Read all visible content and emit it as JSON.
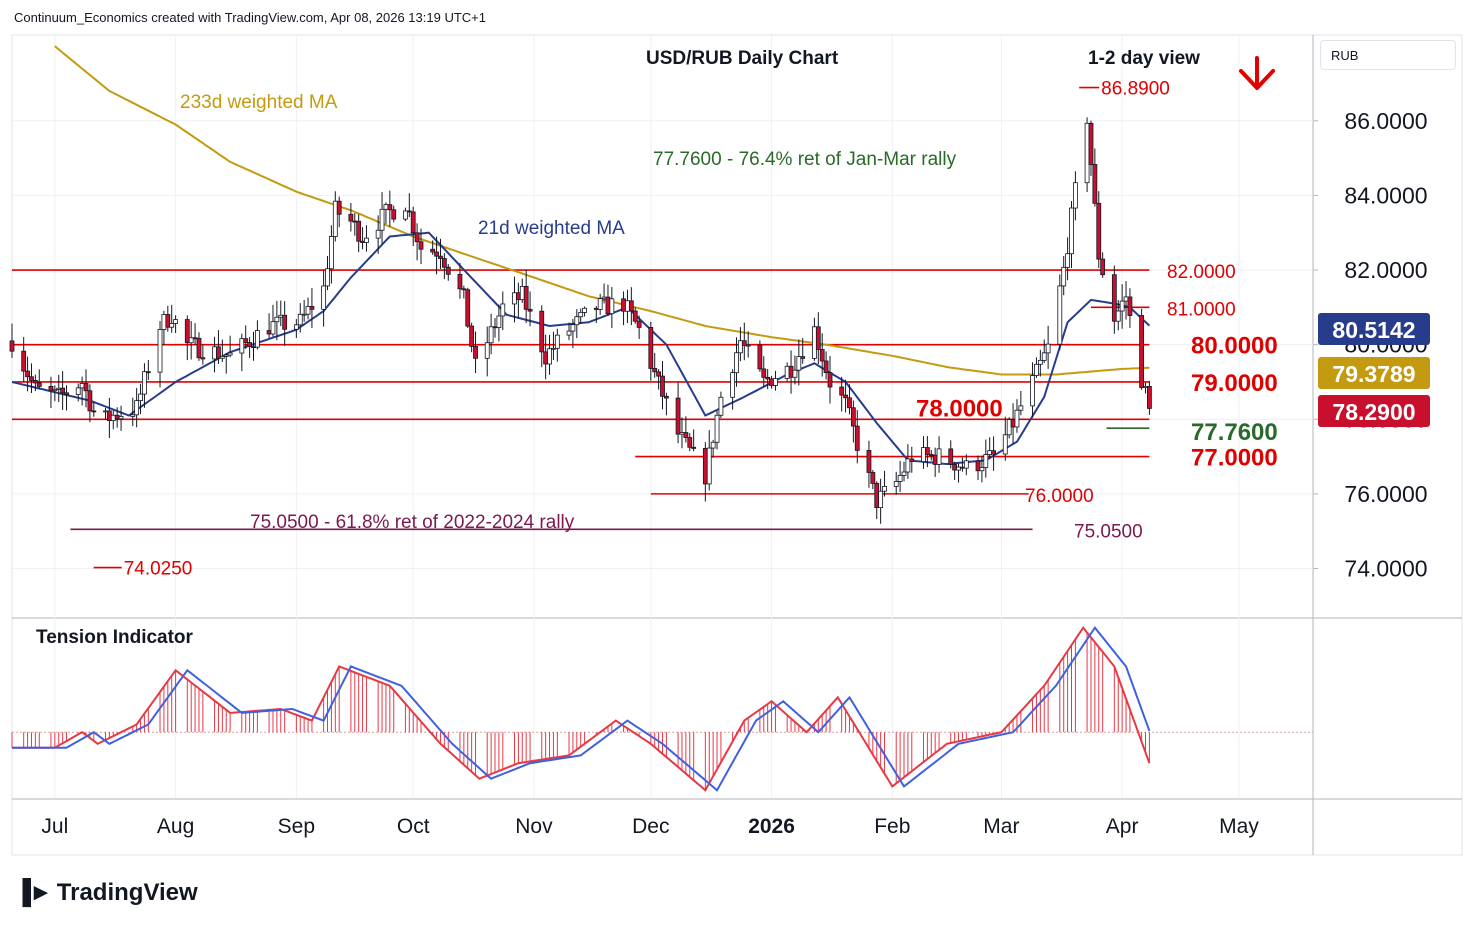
{
  "header": {
    "attribution": "Continuum_Economics created with TradingView.com, Apr 08, 2026 13:19 UTC+1",
    "currency": "RUB",
    "brand": "TradingView"
  },
  "colors": {
    "bull": "#ffffff",
    "bear": "#c8102e",
    "wick": "#131722",
    "level": "#e00000",
    "ma21": "#283c8c",
    "ma233": "#c49a10",
    "retrace_green": "#2a6a2a",
    "retrace_purple": "#7b1a4e",
    "tension_red": "#e63946",
    "tension_blue": "#4060e0",
    "badge_ma21": "#283c8c",
    "badge_ma233": "#c49a10",
    "badge_price": "#c8102e"
  },
  "chart_data": {
    "type": "candlestick",
    "title": "USD/RUB Daily Chart",
    "view_label": "1-2 day view",
    "view_icon": "arrow-down-icon",
    "y_axis": {
      "ticks": [
        "86.0000",
        "84.0000",
        "82.0000",
        "80.0000",
        "78.0000",
        "76.0000",
        "74.0000"
      ],
      "ylim": [
        72.7,
        88.3
      ]
    },
    "x_axis": {
      "labels": [
        "Jul",
        "Aug",
        "Sep",
        "Oct",
        "Nov",
        "Dec",
        "2026",
        "Feb",
        "Mar",
        "Apr",
        "May"
      ],
      "start": "2025-06-20",
      "end": "2026-05-20",
      "label_dates": [
        "2025-07-01",
        "2025-08-01",
        "2025-09-01",
        "2025-10-01",
        "2025-11-01",
        "2025-12-01",
        "2026-01-01",
        "2026-02-01",
        "2026-03-01",
        "2026-04-01",
        "2026-05-01"
      ]
    },
    "candle_anchors": [
      [
        "2025-06-20",
        80.1
      ],
      [
        "2025-06-26",
        78.8
      ],
      [
        "2025-07-02",
        78.6
      ],
      [
        "2025-07-08",
        79.0
      ],
      [
        "2025-07-11",
        78.2
      ],
      [
        "2025-07-14",
        78.0
      ],
      [
        "2025-07-16",
        78.1
      ],
      [
        "2025-07-22",
        78.3
      ],
      [
        "2025-07-28",
        80.5
      ],
      [
        "2025-07-31",
        80.8
      ],
      [
        "2025-08-04",
        80.0
      ],
      [
        "2025-08-15",
        79.7
      ],
      [
        "2025-08-25",
        80.5
      ],
      [
        "2025-09-02",
        80.6
      ],
      [
        "2025-09-08",
        81.5
      ],
      [
        "2025-09-11",
        83.6
      ],
      [
        "2025-09-15",
        83.3
      ],
      [
        "2025-09-18",
        82.9
      ],
      [
        "2025-09-24",
        83.5
      ],
      [
        "2025-09-29",
        83.8
      ],
      [
        "2025-10-03",
        82.6
      ],
      [
        "2025-10-08",
        82.5
      ],
      [
        "2025-10-14",
        81.2
      ],
      [
        "2025-10-17",
        79.4
      ],
      [
        "2025-10-24",
        81.0
      ],
      [
        "2025-10-29",
        81.3
      ],
      [
        "2025-11-04",
        79.7
      ],
      [
        "2025-11-10",
        80.4
      ],
      [
        "2025-11-17",
        81.0
      ],
      [
        "2025-11-24",
        81.1
      ],
      [
        "2025-11-28",
        80.4
      ],
      [
        "2025-12-02",
        79.2
      ],
      [
        "2025-12-08",
        77.6
      ],
      [
        "2025-12-15",
        76.5
      ],
      [
        "2025-12-19",
        78.6
      ],
      [
        "2025-12-24",
        80.1
      ],
      [
        "2025-12-30",
        79.0
      ],
      [
        "2026-01-06",
        79.4
      ],
      [
        "2026-01-12",
        80.4
      ],
      [
        "2026-01-16",
        79.0
      ],
      [
        "2026-01-20",
        78.4
      ],
      [
        "2026-01-24",
        77.0
      ],
      [
        "2026-01-28",
        75.8
      ],
      [
        "2026-02-02",
        76.3
      ],
      [
        "2026-02-06",
        77.0
      ],
      [
        "2026-02-13",
        77.0
      ],
      [
        "2026-02-20",
        76.7
      ],
      [
        "2026-02-27",
        77.0
      ],
      [
        "2026-03-04",
        77.9
      ],
      [
        "2026-03-09",
        79.0
      ],
      [
        "2026-03-13",
        79.9
      ],
      [
        "2026-03-17",
        82.0
      ],
      [
        "2026-03-20",
        84.1
      ],
      [
        "2026-03-23",
        86.1
      ],
      [
        "2026-03-26",
        82.4
      ],
      [
        "2026-03-30",
        80.7
      ],
      [
        "2026-04-02",
        81.3
      ],
      [
        "2026-04-05",
        79.5
      ],
      [
        "2026-04-08",
        78.29
      ]
    ],
    "ma21_anchors": [
      [
        "2025-06-20",
        79.0
      ],
      [
        "2025-07-10",
        78.5
      ],
      [
        "2025-07-20",
        78.1
      ],
      [
        "2025-08-01",
        79.0
      ],
      [
        "2025-08-15",
        79.8
      ],
      [
        "2025-09-01",
        80.4
      ],
      [
        "2025-09-08",
        80.9
      ],
      [
        "2025-09-15",
        81.8
      ],
      [
        "2025-09-25",
        82.9
      ],
      [
        "2025-10-05",
        83.0
      ],
      [
        "2025-10-15",
        81.9
      ],
      [
        "2025-10-25",
        80.8
      ],
      [
        "2025-11-05",
        80.5
      ],
      [
        "2025-11-15",
        80.6
      ],
      [
        "2025-11-25",
        81.0
      ],
      [
        "2025-12-05",
        80.0
      ],
      [
        "2025-12-15",
        78.1
      ],
      [
        "2025-12-25",
        78.6
      ],
      [
        "2026-01-05",
        79.2
      ],
      [
        "2026-01-12",
        79.5
      ],
      [
        "2026-01-20",
        79.0
      ],
      [
        "2026-01-28",
        77.9
      ],
      [
        "2026-02-05",
        76.9
      ],
      [
        "2026-02-15",
        76.8
      ],
      [
        "2026-02-25",
        76.9
      ],
      [
        "2026-03-05",
        77.4
      ],
      [
        "2026-03-12",
        78.6
      ],
      [
        "2026-03-18",
        80.6
      ],
      [
        "2026-03-24",
        81.2
      ],
      [
        "2026-03-30",
        81.1
      ],
      [
        "2026-04-03",
        81.0
      ],
      [
        "2026-04-08",
        80.51
      ]
    ],
    "ma233_anchors": [
      [
        "2025-07-01",
        88.0
      ],
      [
        "2025-07-15",
        86.8
      ],
      [
        "2025-08-01",
        85.9
      ],
      [
        "2025-08-15",
        84.9
      ],
      [
        "2025-09-01",
        84.1
      ],
      [
        "2025-09-15",
        83.6
      ],
      [
        "2025-10-01",
        82.9
      ],
      [
        "2025-10-15",
        82.4
      ],
      [
        "2025-11-01",
        81.8
      ],
      [
        "2025-11-15",
        81.3
      ],
      [
        "2025-12-01",
        80.9
      ],
      [
        "2025-12-15",
        80.5
      ],
      [
        "2026-01-01",
        80.2
      ],
      [
        "2026-01-15",
        80.0
      ],
      [
        "2026-02-01",
        79.7
      ],
      [
        "2026-02-15",
        79.4
      ],
      [
        "2026-03-01",
        79.2
      ],
      [
        "2026-03-15",
        79.2
      ],
      [
        "2026-04-01",
        79.35
      ],
      [
        "2026-04-08",
        79.38
      ]
    ],
    "tension_anchors": [
      [
        "2025-06-20",
        -0.4
      ],
      [
        "2025-07-01",
        -0.4
      ],
      [
        "2025-07-08",
        0.0
      ],
      [
        "2025-07-12",
        -0.3
      ],
      [
        "2025-07-22",
        0.2
      ],
      [
        "2025-08-01",
        1.6
      ],
      [
        "2025-08-15",
        0.5
      ],
      [
        "2025-08-28",
        0.6
      ],
      [
        "2025-09-05",
        0.3
      ],
      [
        "2025-09-12",
        1.7
      ],
      [
        "2025-09-25",
        1.2
      ],
      [
        "2025-10-08",
        -0.3
      ],
      [
        "2025-10-18",
        -1.2
      ],
      [
        "2025-10-28",
        -0.8
      ],
      [
        "2025-11-10",
        -0.6
      ],
      [
        "2025-11-22",
        0.3
      ],
      [
        "2025-12-01",
        -0.3
      ],
      [
        "2025-12-15",
        -1.5
      ],
      [
        "2025-12-25",
        0.3
      ],
      [
        "2026-01-01",
        0.8
      ],
      [
        "2026-01-10",
        0.0
      ],
      [
        "2026-01-18",
        0.9
      ],
      [
        "2026-02-01",
        -1.4
      ],
      [
        "2026-02-15",
        -0.3
      ],
      [
        "2026-03-01",
        0.0
      ],
      [
        "2026-03-12",
        1.2
      ],
      [
        "2026-03-22",
        2.7
      ],
      [
        "2026-03-30",
        1.7
      ],
      [
        "2026-04-08",
        -0.8
      ]
    ],
    "tension_ylim": [
      -1.7,
      2.9
    ],
    "levels": [
      {
        "value": "82.0000",
        "y": 82.0,
        "start": "2025-06-20",
        "end": "2026-04-08",
        "color": "#e00000",
        "size": "md"
      },
      {
        "value": "81.0000",
        "y": 81.0,
        "start": "2026-03-24",
        "end": "2026-04-08",
        "color": "#e00000",
        "size": "md"
      },
      {
        "value": "80.0000",
        "y": 80.0,
        "start": "2025-06-20",
        "end": "2026-04-08",
        "color": "#e00000",
        "size": "lg"
      },
      {
        "value": "79.0000",
        "y": 79.0,
        "start": "2025-06-20",
        "end": "2026-04-08",
        "color": "#e00000",
        "size": "lg"
      },
      {
        "value": "78.0000",
        "y": 78.0,
        "start": "2025-06-20",
        "end": "2026-04-08",
        "color": "#e00000",
        "size": "lg"
      },
      {
        "value": "77.7600",
        "y": 77.76,
        "start": "2026-03-28",
        "end": "2026-04-08",
        "color": "#2a6a2a",
        "size": "lg"
      },
      {
        "value": "77.0000",
        "y": 77.0,
        "start": "2025-11-27",
        "end": "2026-04-08",
        "color": "#e00000",
        "size": "lg"
      },
      {
        "value": "76.0000",
        "y": 76.0,
        "start": "2025-12-01",
        "end": "2026-03-08",
        "color": "#e00000",
        "size": "md"
      },
      {
        "value": "75.0500",
        "y": 75.05,
        "start": "2025-07-05",
        "end": "2026-03-09",
        "color": "#7b1a4e",
        "size": "md"
      }
    ],
    "low_mark": {
      "label": "74.0250",
      "date": "2025-07-12",
      "value": 74.025
    },
    "high_mark": {
      "label": "86.8900",
      "date": "2026-03-22",
      "value": 86.89
    },
    "annotations": {
      "ma233": "233d weighted MA",
      "ma21": "21d weighted MA",
      "ret_green": "77.7600 - 76.4% ret of Jan-Mar rally",
      "ret_purple": "75.0500 - 61.8% ret of 2022-2024 rally",
      "indicator": "Tension Indicator"
    },
    "badges": [
      {
        "label": "80.5142",
        "value": 80.5142,
        "color": "#283c8c"
      },
      {
        "label": "79.3789",
        "value": 79.3789,
        "color": "#c49a10"
      },
      {
        "label": "78.2900",
        "value": 78.29,
        "color": "#c8102e"
      }
    ]
  }
}
